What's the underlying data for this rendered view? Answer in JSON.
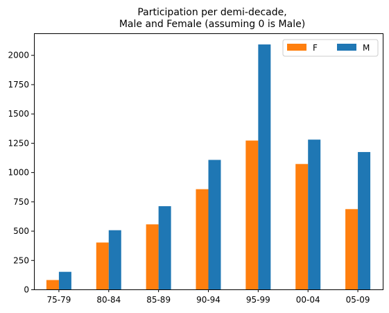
{
  "chart_data": {
    "type": "bar",
    "title_lines": [
      "Participation per demi-decade,",
      "Male and Female (assuming 0 is Male)"
    ],
    "categories": [
      "75-79",
      "80-84",
      "85-89",
      "90-94",
      "95-99",
      "00-04",
      "05-09"
    ],
    "series": [
      {
        "name": "F",
        "color": "#ff7f0e",
        "values": [
          80,
          400,
          555,
          855,
          1270,
          1070,
          685
        ]
      },
      {
        "name": "M",
        "color": "#1f77b4",
        "values": [
          150,
          505,
          710,
          1105,
          2090,
          1278,
          1172
        ]
      }
    ],
    "xlabel": "",
    "ylabel": "",
    "ylim": [
      0,
      2185
    ],
    "yticks": [
      0,
      250,
      500,
      750,
      1000,
      1250,
      1500,
      1750,
      2000
    ],
    "legend": {
      "position": "top-right",
      "columns": 2
    },
    "grid": false
  }
}
